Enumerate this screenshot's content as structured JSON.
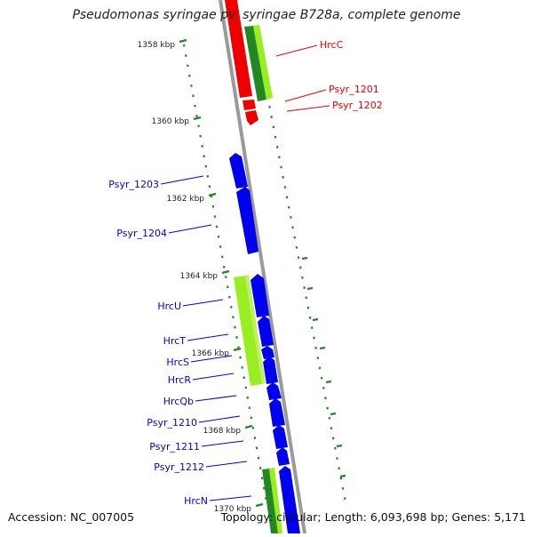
{
  "title": "Pseudomonas syringae pv. syringae B728a, complete genome",
  "footer": {
    "accession": "Accession: NC_007005",
    "summary": "Topology: circular; Length: 6,093,698 bp; Genes: 5,171"
  },
  "scale_ticks": [
    "1358 kbp",
    "1360 kbp",
    "1362 kbp",
    "1364 kbp",
    "1366 kbp",
    "1368 kbp",
    "1370 kbp"
  ],
  "colors": {
    "forward_gene": "#0000ee",
    "highlight_gene": "#ee0000",
    "feature_light": "#99ee22",
    "feature_dark": "#228822",
    "backbone": "#888888",
    "tick": "#228822"
  },
  "gene_labels": [
    {
      "text": "HrcC",
      "color": "red"
    },
    {
      "text": "Psyr_1201",
      "color": "red"
    },
    {
      "text": "Psyr_1202",
      "color": "red"
    },
    {
      "text": "Psyr_1203",
      "color": "blue"
    },
    {
      "text": "Psyr_1204",
      "color": "blue"
    },
    {
      "text": "HrcU",
      "color": "blue"
    },
    {
      "text": "HrcT",
      "color": "blue"
    },
    {
      "text": "HrcS",
      "color": "blue"
    },
    {
      "text": "HrcR",
      "color": "blue"
    },
    {
      "text": "HrcQb",
      "color": "blue"
    },
    {
      "text": "Psyr_1210",
      "color": "blue"
    },
    {
      "text": "Psyr_1211",
      "color": "blue"
    },
    {
      "text": "Psyr_1212",
      "color": "blue"
    },
    {
      "text": "HrcN",
      "color": "blue"
    }
  ]
}
